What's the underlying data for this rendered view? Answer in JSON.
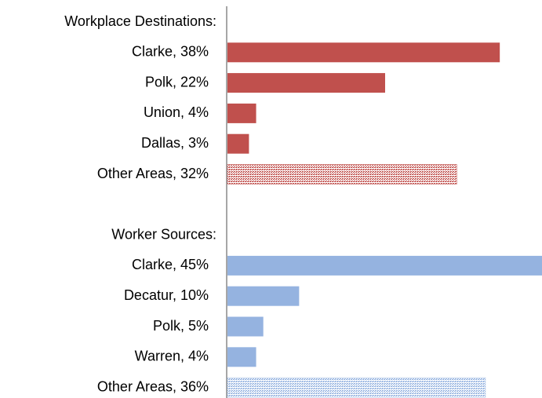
{
  "chart_data": {
    "type": "bar",
    "orientation": "horizontal",
    "categories": [
      "Workplace Destinations:",
      "Clarke, 38%",
      "Polk, 22%",
      "Union, 4%",
      "Dallas, 3%",
      "Other Areas, 32%",
      null,
      "Worker Sources:",
      "Clarke, 45%",
      "Decatur, 10%",
      "Polk, 5%",
      "Warren, 4%",
      "Other Areas, 36%"
    ],
    "values": [
      null,
      38,
      22,
      4,
      3,
      32,
      null,
      null,
      45,
      10,
      5,
      4,
      36
    ],
    "colors": [
      null,
      "#c0504d",
      "#c0504d",
      "#c0504d",
      "#c0504d",
      "#c0504d",
      null,
      null,
      "#95b3e0",
      "#95b3e0",
      "#95b3e0",
      "#95b3e0",
      "#95b3e0"
    ],
    "hatched": [
      null,
      false,
      false,
      false,
      false,
      true,
      null,
      null,
      false,
      false,
      false,
      false,
      true
    ],
    "xlim": [
      0,
      44
    ]
  }
}
